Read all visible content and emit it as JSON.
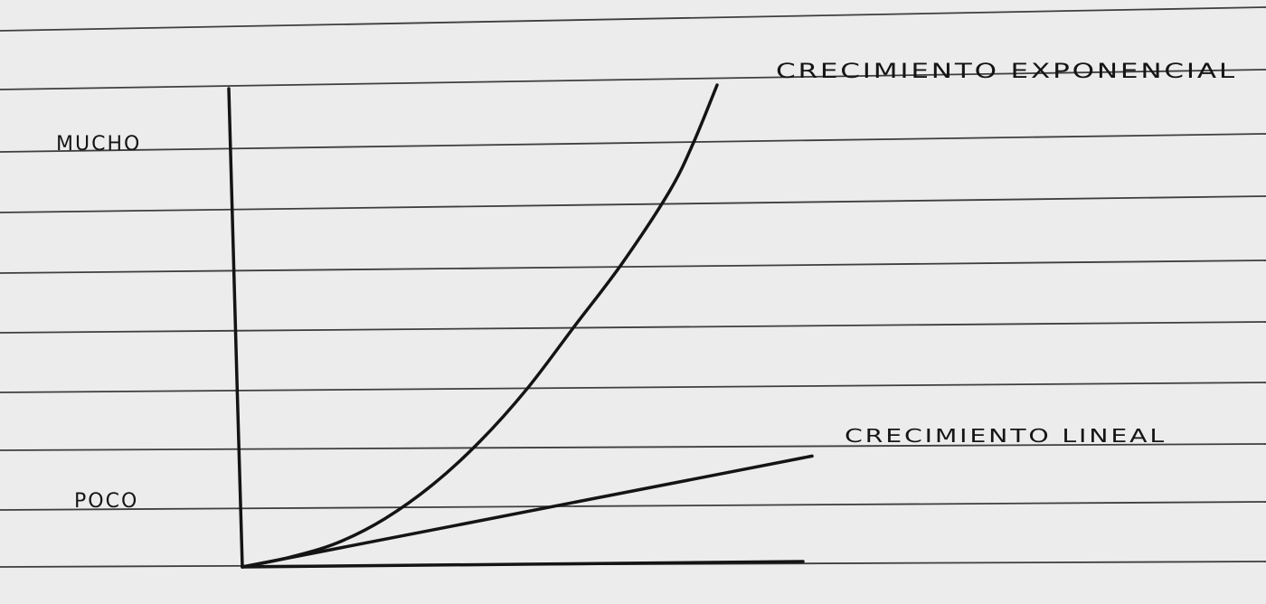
{
  "colors": {
    "paper": "#ececec",
    "rule_line": "#3e3e3e",
    "ink": "#141414"
  },
  "chart_data": {
    "type": "line",
    "title": "",
    "xlabel": "",
    "ylabel": "",
    "y_tick_labels": {
      "high": "MUCHO",
      "low": "POCO"
    },
    "xlim": [
      0,
      1
    ],
    "ylim": [
      0,
      1
    ],
    "grid": false,
    "legend": "none",
    "series": [
      {
        "name": "CRECIMIENTO EXPONENCIAL",
        "label_position": "end-top-right",
        "x": [
          0,
          0.1,
          0.2,
          0.3,
          0.4,
          0.5,
          0.6,
          0.7,
          0.8,
          0.9,
          0.95,
          1.0
        ],
        "y": [
          0,
          0.02,
          0.05,
          0.1,
          0.17,
          0.26,
          0.37,
          0.5,
          0.63,
          0.78,
          0.88,
          1.0
        ]
      },
      {
        "name": "CRECIMIENTO LINEAL",
        "label_position": "end-right",
        "x": [
          0,
          1.2
        ],
        "y": [
          0,
          0.23
        ]
      }
    ]
  }
}
